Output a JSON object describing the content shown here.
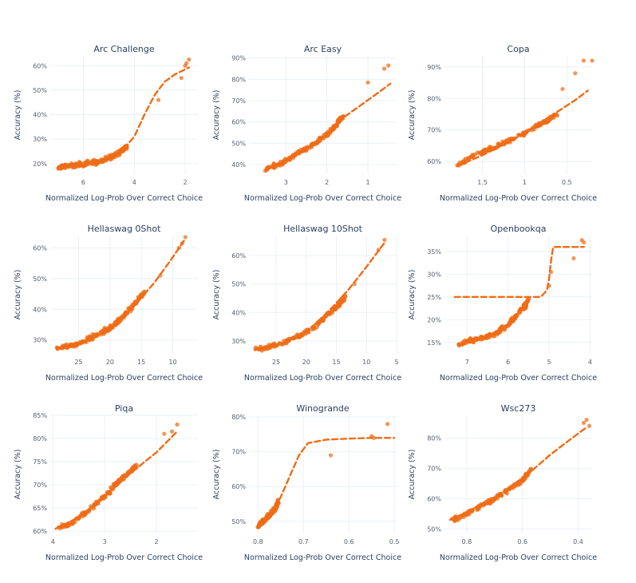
{
  "chart_data": [
    {
      "type": "scatter",
      "title": "Arc Challenge",
      "xlabel": "Normalized Log-Prob Over Correct Choice",
      "ylabel": "Accuracy (%)",
      "x_reversed": true,
      "xlim": [
        7.3,
        1.5
      ],
      "ylim": [
        15.7,
        64
      ],
      "xticks": [
        6,
        4,
        2
      ],
      "xticklabels": [
        "6",
        "4",
        "2"
      ],
      "yticks": [
        20,
        30,
        40,
        50,
        60
      ],
      "yticklabels": [
        "20%",
        "30%",
        "40%",
        "50%",
        "60%"
      ],
      "cluster_points": [
        [
          7.0,
          18.3
        ],
        [
          6.7,
          18.8
        ],
        [
          6.3,
          19.3
        ],
        [
          5.9,
          19.9
        ],
        [
          5.5,
          20.6
        ],
        [
          5.1,
          21.8
        ],
        [
          4.8,
          23.2
        ],
        [
          4.5,
          25.2
        ],
        [
          4.3,
          27.0
        ]
      ],
      "outliers": [
        [
          3.05,
          46
        ],
        [
          2.15,
          55
        ],
        [
          2.0,
          60
        ],
        [
          1.95,
          61
        ],
        [
          1.85,
          62.5
        ]
      ],
      "trend": [
        [
          7.0,
          18.3
        ],
        [
          6.0,
          19.4
        ],
        [
          5.0,
          21.8
        ],
        [
          4.5,
          25
        ],
        [
          4.0,
          31
        ],
        [
          3.6,
          40
        ],
        [
          3.2,
          48
        ],
        [
          2.8,
          53.5
        ],
        [
          2.4,
          56.5
        ],
        [
          2.0,
          58.5
        ],
        [
          1.85,
          59.3
        ]
      ]
    },
    {
      "type": "scatter",
      "title": "Arc Easy",
      "xlabel": "Normalized Log-Prob Over Correct Choice",
      "ylabel": "Accuracy (%)",
      "x_reversed": true,
      "xlim": [
        3.9,
        0.3
      ],
      "ylim": [
        35.5,
        91
      ],
      "xticks": [
        3,
        2,
        1
      ],
      "xticklabels": [
        "3",
        "2",
        "1"
      ],
      "yticks": [
        40,
        50,
        60,
        70,
        80,
        90
      ],
      "yticklabels": [
        "40%",
        "50%",
        "60%",
        "70%",
        "80%",
        "90%"
      ],
      "cluster_points": [
        [
          3.5,
          37.5
        ],
        [
          3.2,
          40
        ],
        [
          2.9,
          43
        ],
        [
          2.6,
          46.5
        ],
        [
          2.3,
          50
        ],
        [
          2.0,
          54
        ],
        [
          1.8,
          58
        ],
        [
          1.6,
          62.5
        ]
      ],
      "outliers": [
        [
          1.0,
          78.5
        ],
        [
          0.6,
          85
        ],
        [
          0.5,
          86.5
        ]
      ],
      "trend": [
        [
          3.5,
          37.5
        ],
        [
          3.0,
          42
        ],
        [
          2.5,
          47.5
        ],
        [
          2.0,
          54
        ],
        [
          1.6,
          62
        ],
        [
          1.2,
          67.5
        ],
        [
          0.8,
          73
        ],
        [
          0.45,
          78
        ]
      ]
    },
    {
      "type": "scatter",
      "title": "Copa",
      "xlabel": "Normalized Log-Prob Over Correct Choice",
      "ylabel": "Accuracy (%)",
      "x_reversed": true,
      "xlim": [
        1.95,
        0.2
      ],
      "ylim": [
        56,
        93.5
      ],
      "xticks": [
        1.5,
        1,
        0.5
      ],
      "xticklabels": [
        "1.5",
        "1",
        "0.5"
      ],
      "yticks": [
        60,
        70,
        80,
        90
      ],
      "yticklabels": [
        "60%",
        "70%",
        "80%",
        "90%"
      ],
      "cluster_points": [
        [
          1.8,
          58.5
        ],
        [
          1.6,
          62
        ],
        [
          1.4,
          64
        ],
        [
          1.2,
          66.5
        ],
        [
          1.0,
          69
        ],
        [
          0.8,
          72
        ],
        [
          0.6,
          75
        ]
      ],
      "outliers": [
        [
          0.55,
          83
        ],
        [
          0.4,
          88
        ],
        [
          0.3,
          92
        ],
        [
          0.2,
          92
        ]
      ],
      "trend": [
        [
          1.8,
          58.5
        ],
        [
          1.5,
          62
        ],
        [
          1.2,
          66
        ],
        [
          1.0,
          69
        ],
        [
          0.8,
          72.5
        ],
        [
          0.6,
          76
        ],
        [
          0.4,
          79.5
        ],
        [
          0.25,
          82.5
        ]
      ]
    },
    {
      "type": "scatter",
      "title": "Hellaswag 0Shot",
      "xlabel": "Normalized Log-Prob Over Correct Choice",
      "ylabel": "Accuracy (%)",
      "x_reversed": true,
      "xlim": [
        29.5,
        6
      ],
      "ylim": [
        25.5,
        64
      ],
      "xticks": [
        25,
        20,
        15,
        10
      ],
      "xticklabels": [
        "25",
        "20",
        "15",
        "10"
      ],
      "yticks": [
        30,
        40,
        50,
        60
      ],
      "yticklabels": [
        "30%",
        "40%",
        "50%",
        "60%"
      ],
      "cluster_points": [
        [
          28.5,
          27.3
        ],
        [
          26.5,
          28
        ],
        [
          24.5,
          29.3
        ],
        [
          22.5,
          31.2
        ],
        [
          20.5,
          33.3
        ],
        [
          19,
          35.5
        ],
        [
          17.5,
          38.5
        ],
        [
          16,
          42
        ],
        [
          14.5,
          45.5
        ]
      ],
      "outliers": [
        [
          12,
          51
        ],
        [
          9,
          60
        ],
        [
          8.5,
          61.5
        ],
        [
          8.0,
          63.5
        ]
      ],
      "trend": [
        [
          28.5,
          27.3
        ],
        [
          25,
          28.8
        ],
        [
          22,
          31.5
        ],
        [
          19,
          35.5
        ],
        [
          16,
          41.5
        ],
        [
          13,
          48.5
        ],
        [
          10.5,
          55.5
        ],
        [
          8.0,
          63
        ]
      ]
    },
    {
      "type": "scatter",
      "title": "Hellaswag 10Shot",
      "xlabel": "Normalized Log-Prob Over Correct Choice",
      "ylabel": "Accuracy (%)",
      "x_reversed": true,
      "xlim": [
        29.5,
        5
      ],
      "ylim": [
        25.5,
        67
      ],
      "xticks": [
        25,
        20,
        15,
        10,
        5
      ],
      "xticklabels": [
        "25",
        "20",
        "15",
        "10",
        "5"
      ],
      "yticks": [
        30,
        40,
        50,
        60
      ],
      "yticklabels": [
        "30%",
        "40%",
        "50%",
        "60%"
      ],
      "cluster_points": [
        [
          28.5,
          27
        ],
        [
          26,
          28
        ],
        [
          23.5,
          29.8
        ],
        [
          21,
          32
        ],
        [
          19,
          34.5
        ],
        [
          17,
          38
        ],
        [
          15,
          42
        ],
        [
          13.5,
          45.5
        ]
      ],
      "outliers": [
        [
          12,
          50
        ],
        [
          8.0,
          62
        ],
        [
          7.0,
          65.5
        ]
      ],
      "trend": [
        [
          28.5,
          27
        ],
        [
          25,
          28.5
        ],
        [
          22,
          31
        ],
        [
          19,
          35
        ],
        [
          16,
          41
        ],
        [
          13,
          48
        ],
        [
          10,
          56
        ],
        [
          7.0,
          64.5
        ]
      ]
    },
    {
      "type": "scatter",
      "title": "Openbookqa",
      "xlabel": "Normalized Log-Prob Over Correct Choice",
      "ylabel": "Accuracy (%)",
      "x_reversed": true,
      "xlim": [
        7.55,
        3.95
      ],
      "ylim": [
        12.5,
        38.5
      ],
      "xticks": [
        7,
        6,
        5,
        4
      ],
      "xticklabels": [
        "7",
        "6",
        "5",
        "4"
      ],
      "yticks": [
        15,
        20,
        25,
        30,
        35
      ],
      "yticklabels": [
        "15%",
        "20%",
        "25%",
        "30%",
        "35%"
      ],
      "cluster_points": [
        [
          7.2,
          14.5
        ],
        [
          6.9,
          15.5
        ],
        [
          6.6,
          16
        ],
        [
          6.3,
          17
        ],
        [
          6.0,
          19
        ],
        [
          5.8,
          21
        ],
        [
          5.6,
          23
        ],
        [
          5.5,
          24.5
        ]
      ],
      "outliers": [
        [
          5.0,
          27.5
        ],
        [
          4.95,
          30.5
        ],
        [
          4.4,
          33.5
        ],
        [
          4.2,
          37.5
        ],
        [
          4.15,
          37
        ]
      ],
      "trend": [
        [
          7.3,
          25
        ],
        [
          6.0,
          25
        ],
        [
          5.2,
          25
        ],
        [
          5.05,
          26.5
        ],
        [
          5.0,
          29
        ],
        [
          4.95,
          33
        ],
        [
          4.9,
          36
        ],
        [
          4.4,
          36
        ],
        [
          4.15,
          36
        ]
      ]
    },
    {
      "type": "scatter",
      "title": "Piqa",
      "xlabel": "Normalized Log-Prob Over Correct Choice",
      "ylabel": "Accuracy (%)",
      "x_reversed": true,
      "xlim": [
        4.05,
        1.2
      ],
      "ylim": [
        59.5,
        85
      ],
      "xticks": [
        4,
        3,
        2
      ],
      "xticklabels": [
        "4",
        "3",
        "2"
      ],
      "yticks": [
        60,
        65,
        70,
        75,
        80,
        85
      ],
      "yticklabels": [
        "60%",
        "65%",
        "70%",
        "75%",
        "80%",
        "85%"
      ],
      "cluster_points": [
        [
          3.9,
          60.5
        ],
        [
          3.6,
          62
        ],
        [
          3.3,
          64.5
        ],
        [
          3.0,
          67.5
        ],
        [
          2.8,
          70
        ],
        [
          2.6,
          72
        ],
        [
          2.4,
          74
        ]
      ],
      "outliers": [
        [
          1.85,
          81
        ],
        [
          1.7,
          81.5
        ],
        [
          1.6,
          83
        ]
      ],
      "trend": [
        [
          3.95,
          60.5
        ],
        [
          3.5,
          63
        ],
        [
          3.0,
          67.5
        ],
        [
          2.5,
          72.5
        ],
        [
          2.0,
          77
        ],
        [
          1.6,
          81.5
        ]
      ]
    },
    {
      "type": "scatter",
      "title": "Winogrande",
      "xlabel": "Normalized Log-Prob Over Correct Choice",
      "ylabel": "Accuracy (%)",
      "x_reversed": true,
      "xlim": [
        0.82,
        0.495
      ],
      "ylim": [
        46.5,
        80.5
      ],
      "xticks": [
        0.8,
        0.7,
        0.6,
        0.5
      ],
      "xticklabels": [
        "0.8",
        "0.7",
        "0.6",
        "0.5"
      ],
      "yticks": [
        50,
        60,
        70,
        80
      ],
      "yticklabels": [
        "50%",
        "60%",
        "70%",
        "80%"
      ],
      "cluster_points": [
        [
          0.8,
          48.5
        ],
        [
          0.79,
          50
        ],
        [
          0.78,
          51
        ],
        [
          0.77,
          52.5
        ],
        [
          0.76,
          54
        ],
        [
          0.755,
          56
        ]
      ],
      "outliers": [
        [
          0.64,
          69
        ],
        [
          0.55,
          74.5
        ],
        [
          0.545,
          74
        ],
        [
          0.515,
          78
        ]
      ],
      "trend": [
        [
          0.8,
          48.5
        ],
        [
          0.77,
          52
        ],
        [
          0.75,
          57
        ],
        [
          0.73,
          63
        ],
        [
          0.71,
          69
        ],
        [
          0.69,
          72.5
        ],
        [
          0.65,
          73.5
        ],
        [
          0.6,
          73.8
        ],
        [
          0.55,
          74
        ],
        [
          0.5,
          74
        ]
      ]
    },
    {
      "type": "scatter",
      "title": "Wsc273",
      "xlabel": "Normalized Log-Prob Over Correct Choice",
      "ylabel": "Accuracy (%)",
      "x_reversed": true,
      "xlim": [
        0.88,
        0.35
      ],
      "ylim": [
        48.5,
        87.5
      ],
      "xticks": [
        0.8,
        0.6,
        0.4
      ],
      "xticklabels": [
        "0.8",
        "0.6",
        "0.4"
      ],
      "yticks": [
        50,
        60,
        70,
        80
      ],
      "yticklabels": [
        "50%",
        "60%",
        "70%",
        "80%"
      ],
      "cluster_points": [
        [
          0.85,
          53
        ],
        [
          0.8,
          55
        ],
        [
          0.75,
          57.5
        ],
        [
          0.7,
          60
        ],
        [
          0.65,
          63
        ],
        [
          0.6,
          66
        ],
        [
          0.57,
          70
        ]
      ],
      "outliers": [
        [
          0.38,
          85
        ],
        [
          0.37,
          86
        ],
        [
          0.36,
          84
        ]
      ],
      "trend": [
        [
          0.86,
          53
        ],
        [
          0.8,
          55.5
        ],
        [
          0.7,
          60.5
        ],
        [
          0.6,
          66.5
        ],
        [
          0.5,
          74.5
        ],
        [
          0.4,
          81.5
        ],
        [
          0.37,
          83.5
        ]
      ]
    }
  ]
}
